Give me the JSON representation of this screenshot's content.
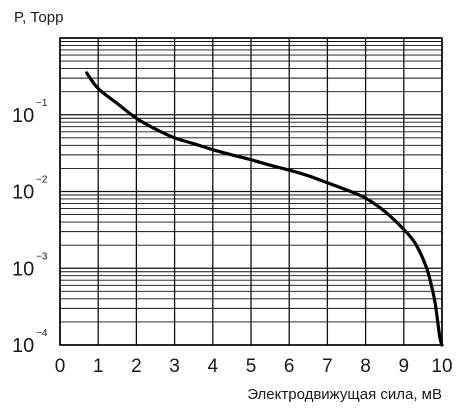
{
  "chart_data": {
    "type": "line",
    "title": "",
    "ylabel": "P, Торр",
    "xlabel": "Электродвижущая сила, мВ",
    "x_scale": "linear",
    "y_scale": "log",
    "xlim": [
      0,
      10
    ],
    "ylim": [
      0.0001,
      1
    ],
    "grid": true,
    "x_ticks": [
      "0",
      "1",
      "2",
      "3",
      "4",
      "5",
      "6",
      "7",
      "8",
      "9",
      "10"
    ],
    "y_ticks": [
      {
        "base": "10",
        "exp": "−1",
        "value": 0.1
      },
      {
        "base": "10",
        "exp": "−2",
        "value": 0.01
      },
      {
        "base": "10",
        "exp": "−3",
        "value": 0.001
      },
      {
        "base": "10",
        "exp": "−4",
        "value": 0.0001
      }
    ],
    "series": [
      {
        "x": [
          0.7,
          1.0,
          1.5,
          2.0,
          2.5,
          3.0,
          3.5,
          4.0,
          4.5,
          5.0,
          5.5,
          6.0,
          6.5,
          7.0,
          7.5,
          8.0,
          8.5,
          9.0,
          9.3,
          9.6,
          9.8,
          9.9,
          9.95,
          10.0
        ],
        "y": [
          0.35,
          0.22,
          0.14,
          0.09,
          0.065,
          0.05,
          0.042,
          0.035,
          0.03,
          0.026,
          0.022,
          0.019,
          0.016,
          0.013,
          0.0105,
          0.0082,
          0.0055,
          0.0032,
          0.0021,
          0.001,
          0.0004,
          0.00018,
          0.00012,
          0.0001
        ]
      }
    ]
  }
}
